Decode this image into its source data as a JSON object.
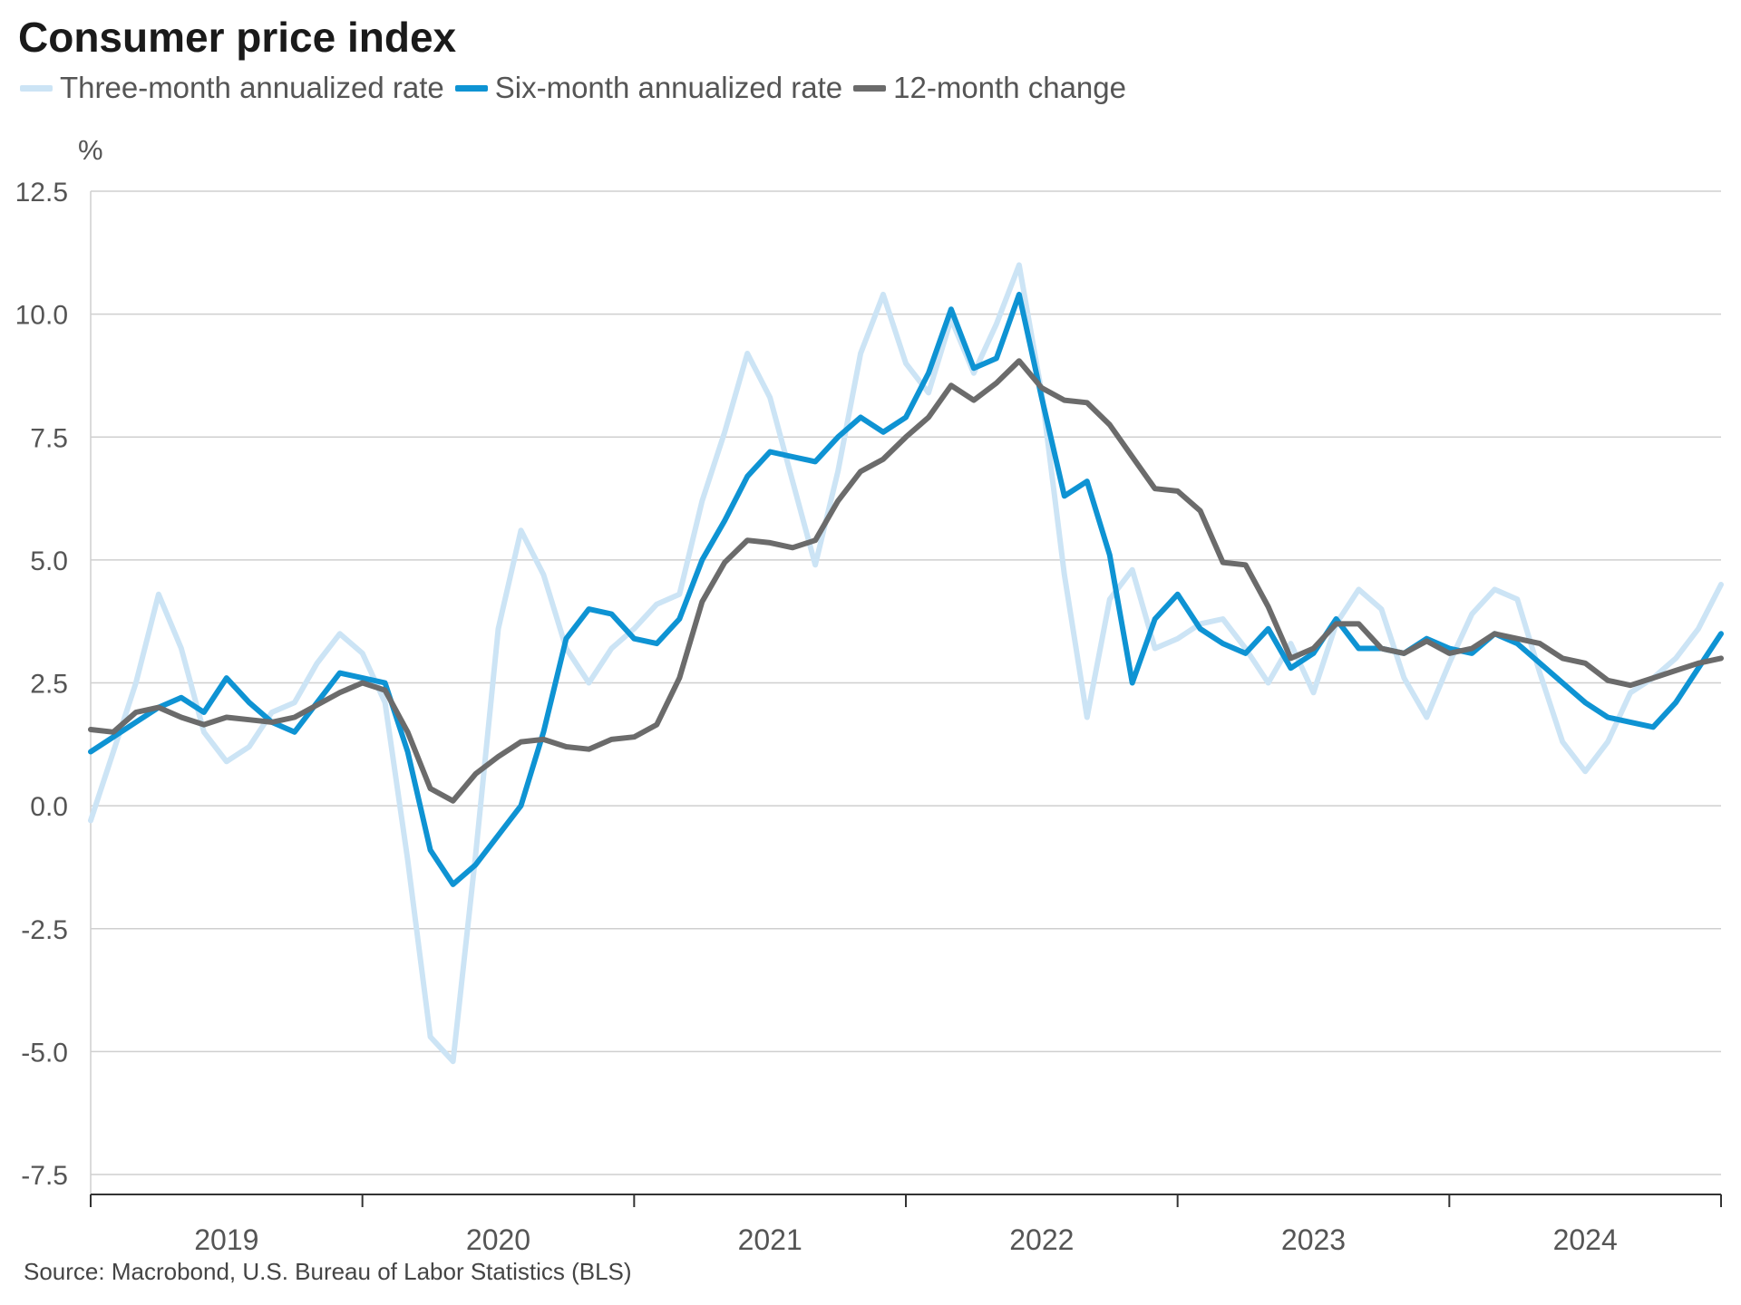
{
  "chart_data": {
    "type": "line",
    "title": "Consumer price index",
    "ylabel": "%",
    "source": "Source: Macrobond, U.S. Bureau of Labor Statistics (BLS)",
    "ylim": [
      -7.5,
      12.5
    ],
    "yticks": [
      "12.5",
      "10.0",
      "7.5",
      "5.0",
      "2.5",
      "0.0",
      "-2.5",
      "-5.0",
      "-7.5"
    ],
    "x_start": "2019-01",
    "x_range": [
      2019.0,
      2025.0
    ],
    "year_labels": [
      "2019",
      "2020",
      "2021",
      "2022",
      "2023",
      "2024"
    ],
    "grid": "horizontal",
    "legend_position": "top-left",
    "series": [
      {
        "name": "Three-month annualized rate",
        "color": "#cce4f5",
        "values": [
          -0.3,
          1.1,
          2.5,
          4.3,
          3.2,
          1.5,
          0.9,
          1.2,
          1.9,
          2.1,
          2.9,
          3.5,
          3.1,
          2.1,
          -1.1,
          -4.7,
          -5.2,
          -1.0,
          3.6,
          5.6,
          4.7,
          3.2,
          2.5,
          3.2,
          3.6,
          4.1,
          4.3,
          6.2,
          7.6,
          9.2,
          8.3,
          6.6,
          4.9,
          6.8,
          9.2,
          10.4,
          9.0,
          8.4,
          9.9,
          8.8,
          9.8,
          11.0,
          8.4,
          4.7,
          1.8,
          4.2,
          4.8,
          3.2,
          3.4,
          3.7,
          3.8,
          3.2,
          2.5,
          3.3,
          2.3,
          3.7,
          4.4,
          4.0,
          2.6,
          1.8,
          2.9,
          3.9,
          4.4,
          4.2,
          2.7,
          1.3,
          0.7,
          1.3,
          2.3,
          2.6,
          3.0,
          3.6,
          4.5
        ]
      },
      {
        "name": "Six-month annualized rate",
        "color": "#0e93d3",
        "values": [
          1.1,
          1.4,
          1.7,
          2.0,
          2.2,
          1.9,
          2.6,
          2.1,
          1.7,
          1.5,
          2.1,
          2.7,
          2.6,
          2.5,
          1.1,
          -0.9,
          -1.6,
          -1.2,
          -0.6,
          0.0,
          1.5,
          3.4,
          4.0,
          3.9,
          3.4,
          3.3,
          3.8,
          5.0,
          5.8,
          6.7,
          7.2,
          7.1,
          7.0,
          7.5,
          7.9,
          7.6,
          7.9,
          8.8,
          10.1,
          8.9,
          9.1,
          10.4,
          8.3,
          6.3,
          6.6,
          5.1,
          2.5,
          3.8,
          4.3,
          3.6,
          3.3,
          3.1,
          3.6,
          2.8,
          3.1,
          3.8,
          3.2,
          3.2,
          3.1,
          3.4,
          3.2,
          3.1,
          3.5,
          3.3,
          2.9,
          2.5,
          2.1,
          1.8,
          1.7,
          1.6,
          2.1,
          2.8,
          3.5
        ]
      },
      {
        "name": "12-month change",
        "color": "#6b6b6b",
        "values": [
          1.55,
          1.5,
          1.9,
          2.0,
          1.8,
          1.65,
          1.8,
          1.75,
          1.7,
          1.8,
          2.05,
          2.3,
          2.5,
          2.35,
          1.5,
          0.35,
          0.1,
          0.65,
          1.0,
          1.3,
          1.35,
          1.2,
          1.15,
          1.35,
          1.4,
          1.65,
          2.6,
          4.15,
          4.95,
          5.4,
          5.35,
          5.25,
          5.4,
          6.2,
          6.8,
          7.05,
          7.5,
          7.9,
          8.55,
          8.25,
          8.6,
          9.05,
          8.5,
          8.25,
          8.2,
          7.75,
          7.1,
          6.45,
          6.4,
          6.0,
          4.95,
          4.9,
          4.05,
          3.0,
          3.2,
          3.7,
          3.7,
          3.2,
          3.1,
          3.35,
          3.1,
          3.2,
          3.5,
          3.4,
          3.3,
          3.0,
          2.9,
          2.55,
          2.45,
          2.6,
          2.75,
          2.9,
          3.0
        ]
      }
    ]
  }
}
